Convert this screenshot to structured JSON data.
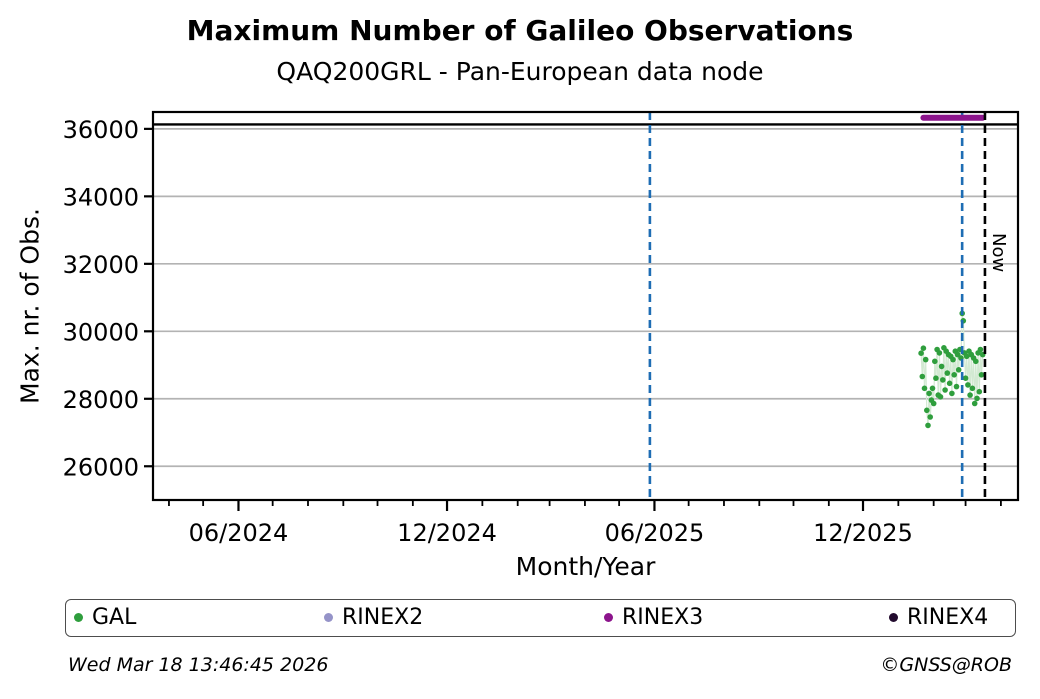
{
  "header": {
    "title": "Maximum Number of Galileo Observations",
    "subtitle": "QAQ200GRL - Pan-European data node"
  },
  "footer": {
    "timestamp": "Wed Mar 18 13:46:45 2026",
    "copyright": "©GNSS@ROB"
  },
  "colors": {
    "gal": "#2f9e3d",
    "gal_stem": "#d2e9d2",
    "rinex2": "#9593c8",
    "rinex3": "#8c148c",
    "rinex4": "#220b2e",
    "event_line_blue": "#1e6db4",
    "now_line_black": "#000000",
    "gridline_gray": "#b3b3b3",
    "max_line_black": "#000000"
  },
  "legend": [
    {
      "label": "GAL",
      "color": "#2f9e3d"
    },
    {
      "label": "RINEX2",
      "color": "#9593c8"
    },
    {
      "label": "RINEX3",
      "color": "#8c148c"
    },
    {
      "label": "RINEX4",
      "color": "#220b2e"
    }
  ],
  "chart_data": {
    "type": "scatter",
    "title": "Maximum Number of Galileo Observations",
    "subtitle": "QAQ200GRL - Pan-European data node",
    "xlabel": "Month/Year",
    "ylabel": "Max. nr. of Obs.",
    "x_domain": [
      "2024-03-18",
      "2026-04-16"
    ],
    "ylim": [
      25000,
      36500
    ],
    "grid": "horizontal-only",
    "y_ticks": [
      {
        "value": 26000,
        "label": "26000"
      },
      {
        "value": 28000,
        "label": "28000"
      },
      {
        "value": 30000,
        "label": "30000"
      },
      {
        "value": 32000,
        "label": "32000"
      },
      {
        "value": 34000,
        "label": "34000"
      },
      {
        "value": 36000,
        "label": "36000"
      }
    ],
    "x_major_ticks": [
      {
        "date": "2024-06-01",
        "label": "06/2024"
      },
      {
        "date": "2024-12-01",
        "label": "12/2024"
      },
      {
        "date": "2025-06-01",
        "label": "06/2025"
      },
      {
        "date": "2025-12-01",
        "label": "12/2025"
      }
    ],
    "x_minor_tick_interval": "month",
    "max_reference_line": {
      "value": 36130
    },
    "event_lines": [
      {
        "date": "2025-05-28"
      },
      {
        "date": "2026-02-26"
      }
    ],
    "now_line": {
      "date": "2026-03-18",
      "label": "Now"
    },
    "series": [
      {
        "name": "GAL",
        "type": "scatter-with-light-stems",
        "color": "#2f9e3d",
        "points": [
          [
            "2026-01-21",
            29350
          ],
          [
            "2026-01-22",
            28660
          ],
          [
            "2026-01-23",
            29500
          ],
          [
            "2026-01-24",
            28310
          ],
          [
            "2026-01-25",
            29160
          ],
          [
            "2026-01-26",
            27660
          ],
          [
            "2026-01-27",
            27210
          ],
          [
            "2026-01-28",
            28160
          ],
          [
            "2026-01-29",
            27460
          ],
          [
            "2026-01-30",
            27960
          ],
          [
            "2026-01-31",
            28310
          ],
          [
            "2026-02-01",
            27860
          ],
          [
            "2026-02-02",
            29110
          ],
          [
            "2026-02-03",
            28610
          ],
          [
            "2026-02-04",
            29460
          ],
          [
            "2026-02-05",
            28110
          ],
          [
            "2026-02-06",
            29360
          ],
          [
            "2026-02-07",
            28060
          ],
          [
            "2026-02-08",
            28960
          ],
          [
            "2026-02-09",
            28560
          ],
          [
            "2026-02-10",
            29510
          ],
          [
            "2026-02-11",
            28260
          ],
          [
            "2026-02-12",
            29410
          ],
          [
            "2026-02-13",
            28760
          ],
          [
            "2026-02-14",
            29310
          ],
          [
            "2026-02-15",
            28460
          ],
          [
            "2026-02-16",
            29260
          ],
          [
            "2026-02-17",
            28160
          ],
          [
            "2026-02-18",
            29160
          ],
          [
            "2026-02-19",
            28710
          ],
          [
            "2026-02-20",
            29410
          ],
          [
            "2026-02-21",
            28360
          ],
          [
            "2026-02-22",
            29310
          ],
          [
            "2026-02-23",
            28860
          ],
          [
            "2026-02-24",
            29460
          ],
          [
            "2026-02-25",
            29210
          ],
          [
            "2026-02-26",
            30530
          ],
          [
            "2026-02-27",
            30310
          ],
          [
            "2026-02-28",
            29360
          ],
          [
            "2026-03-01",
            28610
          ],
          [
            "2026-03-02",
            29260
          ],
          [
            "2026-03-03",
            28410
          ],
          [
            "2026-03-04",
            29410
          ],
          [
            "2026-03-05",
            28110
          ],
          [
            "2026-03-06",
            29310
          ],
          [
            "2026-03-07",
            28310
          ],
          [
            "2026-03-08",
            29210
          ],
          [
            "2026-03-09",
            27860
          ],
          [
            "2026-03-10",
            29110
          ],
          [
            "2026-03-11",
            28010
          ],
          [
            "2026-03-12",
            29360
          ],
          [
            "2026-03-13",
            28210
          ],
          [
            "2026-03-14",
            29460
          ],
          [
            "2026-03-15",
            28710
          ],
          [
            "2026-03-16",
            29310
          ]
        ]
      },
      {
        "name": "RINEX3",
        "type": "horizontal-segment",
        "color": "#8c148c",
        "y": 36330,
        "x_start": "2026-01-23",
        "x_end": "2026-03-16"
      },
      {
        "name": "RINEX2",
        "type": "none",
        "color": "#9593c8",
        "points": []
      },
      {
        "name": "RINEX4",
        "type": "none",
        "color": "#220b2e",
        "points": []
      }
    ]
  }
}
